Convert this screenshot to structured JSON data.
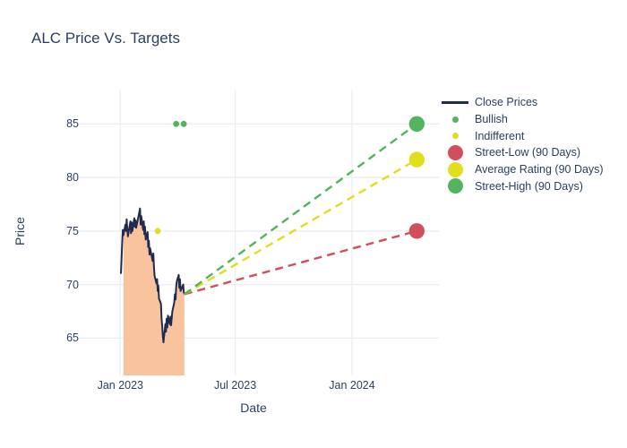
{
  "page_title": "ALC Price Vs. Targets",
  "chart_data": {
    "type": "line",
    "title": "ALC Price Vs. Targets",
    "xlabel": "Date",
    "ylabel": "Price",
    "grid": true,
    "legend_position": "right-outside",
    "x_range": [
      "2022-10-27",
      "2024-05-19"
    ],
    "y_range": [
      61.5,
      88.2
    ],
    "x_ticks": [
      {
        "label": "Jan 2023",
        "date": "2023-01-01"
      },
      {
        "label": "Jul 2023",
        "date": "2023-07-01"
      },
      {
        "label": "Jan 2024",
        "date": "2024-01-01"
      }
    ],
    "y_ticks": [
      65,
      70,
      75,
      80,
      85
    ],
    "close_prices": {
      "name": "Close Prices",
      "color": "#1f2c4f",
      "fill_color": "#f9c49d",
      "fill_from": "2023-01-06",
      "points": [
        [
          "2023-01-02",
          71.0
        ],
        [
          "2023-01-03",
          72.4
        ],
        [
          "2023-01-04",
          73.9
        ],
        [
          "2023-01-05",
          75.1
        ],
        [
          "2023-01-06",
          74.6
        ],
        [
          "2023-01-09",
          75.6
        ],
        [
          "2023-01-10",
          75.0
        ],
        [
          "2023-01-11",
          76.1
        ],
        [
          "2023-01-12",
          75.2
        ],
        [
          "2023-01-13",
          74.5
        ],
        [
          "2023-01-17",
          75.9
        ],
        [
          "2023-01-18",
          74.8
        ],
        [
          "2023-01-19",
          75.8
        ],
        [
          "2023-01-20",
          75.0
        ],
        [
          "2023-01-23",
          76.2
        ],
        [
          "2023-01-24",
          75.4
        ],
        [
          "2023-01-25",
          76.0
        ],
        [
          "2023-01-26",
          75.3
        ],
        [
          "2023-01-30",
          76.5
        ],
        [
          "2023-02-01",
          77.1
        ],
        [
          "2023-02-02",
          75.6
        ],
        [
          "2023-02-03",
          76.4
        ],
        [
          "2023-02-06",
          75.1
        ],
        [
          "2023-02-07",
          75.9
        ],
        [
          "2023-02-08",
          74.7
        ],
        [
          "2023-02-09",
          75.4
        ],
        [
          "2023-02-10",
          74.2
        ],
        [
          "2023-02-13",
          74.9
        ],
        [
          "2023-02-14",
          73.5
        ],
        [
          "2023-02-15",
          74.1
        ],
        [
          "2023-02-16",
          72.8
        ],
        [
          "2023-02-17",
          73.4
        ],
        [
          "2023-02-21",
          72.2
        ],
        [
          "2023-02-22",
          72.9
        ],
        [
          "2023-02-23",
          71.6
        ],
        [
          "2023-02-24",
          70.8
        ],
        [
          "2023-02-27",
          70.1
        ],
        [
          "2023-02-28",
          70.5
        ],
        [
          "2023-03-01",
          69.4
        ],
        [
          "2023-03-02",
          69.9
        ],
        [
          "2023-03-03",
          68.7
        ],
        [
          "2023-03-06",
          68.2
        ],
        [
          "2023-03-07",
          66.8
        ],
        [
          "2023-03-08",
          66.1
        ],
        [
          "2023-03-09",
          65.2
        ],
        [
          "2023-03-10",
          64.6
        ],
        [
          "2023-03-13",
          66.3
        ],
        [
          "2023-03-14",
          65.6
        ],
        [
          "2023-03-15",
          66.8
        ],
        [
          "2023-03-16",
          66.0
        ],
        [
          "2023-03-17",
          67.1
        ],
        [
          "2023-03-20",
          66.3
        ],
        [
          "2023-03-21",
          67.0
        ],
        [
          "2023-03-22",
          66.2
        ],
        [
          "2023-03-24",
          67.5
        ],
        [
          "2023-03-27",
          68.3
        ],
        [
          "2023-03-28",
          69.1
        ],
        [
          "2023-03-29",
          68.6
        ],
        [
          "2023-03-30",
          69.8
        ],
        [
          "2023-03-31",
          70.3
        ],
        [
          "2023-04-03",
          70.9
        ],
        [
          "2023-04-04",
          69.7
        ],
        [
          "2023-04-05",
          70.5
        ],
        [
          "2023-04-06",
          69.4
        ],
        [
          "2023-04-10",
          70.0
        ],
        [
          "2023-04-11",
          69.3
        ],
        [
          "2023-04-12",
          69.1
        ]
      ]
    },
    "ratings": [
      {
        "name": "Bullish",
        "color": "#52b55e",
        "points": [
          [
            "2023-03-30",
            85.0
          ],
          [
            "2023-04-11",
            85.0
          ]
        ]
      },
      {
        "name": "Indifferent",
        "color": "#e1de1d",
        "points": [
          [
            "2023-03-01",
            75.0
          ]
        ]
      }
    ],
    "targets": [
      {
        "name": "Street-Low (90 Days)",
        "color": "#d14f5c",
        "date": "2024-04-12",
        "price": 75.0
      },
      {
        "name": "Average Rating (90 Days)",
        "color": "#e1de1d",
        "date": "2024-04-12",
        "price": 81.67
      },
      {
        "name": "Street-High (90 Days)",
        "color": "#52b55e",
        "date": "2024-04-12",
        "price": 85.0
      }
    ],
    "target_lines_from": {
      "date": "2023-04-12",
      "price": 69.1
    },
    "legend": [
      {
        "label": "Close Prices",
        "type": "line",
        "color": "#1f2c4f"
      },
      {
        "label": "Bullish",
        "type": "dot-small",
        "color": "#52b55e"
      },
      {
        "label": "Indifferent",
        "type": "dot-small",
        "color": "#e1de1d"
      },
      {
        "label": "Street-Low (90 Days)",
        "type": "dot-large",
        "color": "#d14f5c"
      },
      {
        "label": "Average Rating (90 Days)",
        "type": "dot-large",
        "color": "#e1de1d"
      },
      {
        "label": "Street-High (90 Days)",
        "type": "dot-large",
        "color": "#52b55e"
      }
    ],
    "colors": {
      "text": "#2a3f5f",
      "grid": "#e9eef6",
      "background": "#ffffff"
    }
  }
}
